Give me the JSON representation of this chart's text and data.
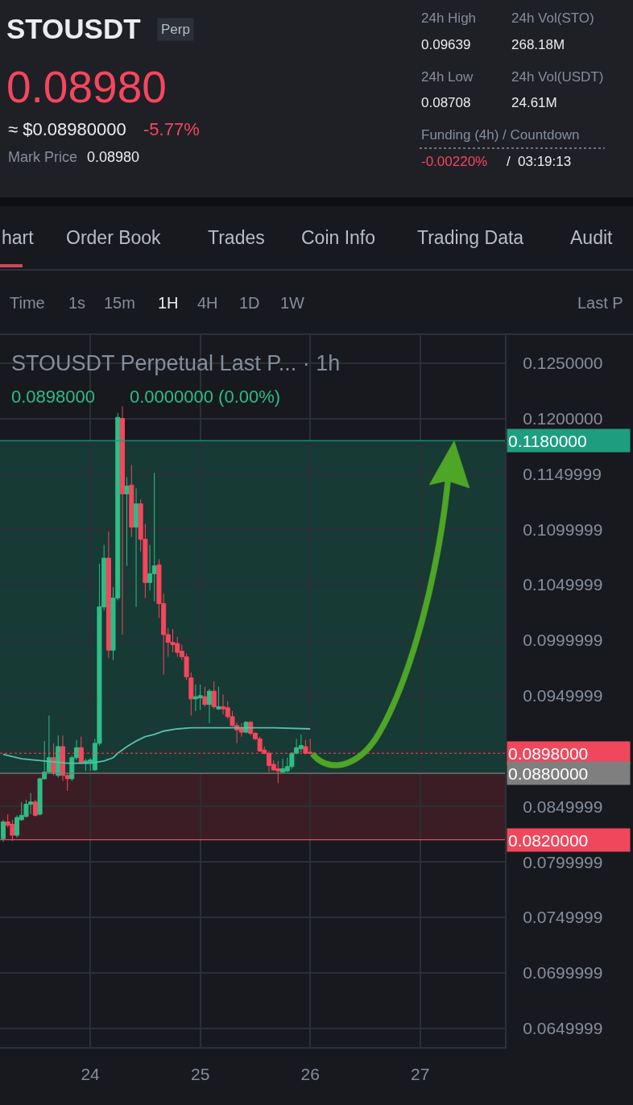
{
  "chart_data": {
    "type": "candlestick",
    "title": "STOUSDT",
    "subtitle": "STOUSDT Perpetual Last P... · 1h",
    "annotations": [
      "Perp",
      "0.08980",
      "≈ $0.08980000",
      "-5.77%",
      "Mark Price",
      "0.08980",
      "24h High",
      "0.09639",
      "24h Vol(STO)",
      "268.18M",
      "24h Low",
      "0.08708",
      "24h Vol(USDT)",
      "24.61M",
      "Funding (4h) / Countdown",
      "-0.00220%",
      "/",
      "03:19:13",
      "hart",
      "Order Book",
      "Trades",
      "Coin Info",
      "Trading Data",
      "Audit",
      "Time",
      "1s",
      "15m",
      "1H",
      "4H",
      "1D",
      "1W",
      "Last P",
      "0.0898000",
      "0.0000000 (0.00%)"
    ],
    "x": [
      23.208,
      23.25,
      23.292,
      23.333,
      23.375,
      23.417,
      23.458,
      23.5,
      23.542,
      23.583,
      23.625,
      23.667,
      23.708,
      23.75,
      23.792,
      23.833,
      23.875,
      23.917,
      23.958,
      24,
      24.042,
      24.083,
      24.125,
      24.167,
      24.208,
      24.25,
      24.292,
      24.333,
      24.375,
      24.417,
      24.458,
      24.5,
      24.542,
      24.583,
      24.625,
      24.667,
      24.708,
      24.75,
      24.792,
      24.833,
      24.875,
      24.917,
      24.958,
      25,
      25.042,
      25.083,
      25.125,
      25.167,
      25.208,
      25.25,
      25.292,
      25.333,
      25.375,
      25.417,
      25.458,
      25.5,
      25.542,
      25.583,
      25.625,
      25.667,
      25.708,
      25.75,
      25.792,
      25.833,
      25.875,
      25.917,
      25.958,
      26
    ],
    "ohlc": [
      [
        0.0821,
        0.0838,
        0.0818,
        0.0836
      ],
      [
        0.0836,
        0.0843,
        0.0831,
        0.0833
      ],
      [
        0.0834,
        0.0838,
        0.0819,
        0.0824
      ],
      [
        0.0824,
        0.0842,
        0.0822,
        0.084
      ],
      [
        0.0838,
        0.0854,
        0.0837,
        0.0842
      ],
      [
        0.0841,
        0.0856,
        0.084,
        0.0852
      ],
      [
        0.0852,
        0.0862,
        0.0843,
        0.0854
      ],
      [
        0.0854,
        0.0856,
        0.0841,
        0.0842
      ],
      [
        0.0843,
        0.0876,
        0.0842,
        0.0875
      ],
      [
        0.0875,
        0.0909,
        0.0874,
        0.0881
      ],
      [
        0.0881,
        0.0932,
        0.088,
        0.0894
      ],
      [
        0.0894,
        0.0907,
        0.0878,
        0.088
      ],
      [
        0.0878,
        0.0914,
        0.0876,
        0.0904
      ],
      [
        0.0904,
        0.0914,
        0.0873,
        0.0878
      ],
      [
        0.0878,
        0.088,
        0.0864,
        0.0875
      ],
      [
        0.0875,
        0.0896,
        0.0873,
        0.0894
      ],
      [
        0.0894,
        0.091,
        0.0892,
        0.0903
      ],
      [
        0.0903,
        0.0913,
        0.0888,
        0.0889
      ],
      [
        0.0889,
        0.0893,
        0.0882,
        0.0891
      ],
      [
        0.089,
        0.0894,
        0.0882,
        0.0892
      ],
      [
        0.0883,
        0.0911,
        0.0882,
        0.0907
      ],
      [
        0.0907,
        0.1069,
        0.0905,
        0.103
      ],
      [
        0.103,
        0.1086,
        0.1027,
        0.1074
      ],
      [
        0.1074,
        0.1098,
        0.0984,
        0.0991
      ],
      [
        0.0991,
        0.1048,
        0.0982,
        0.1038
      ],
      [
        0.1038,
        0.1205,
        0.1036,
        0.1201
      ],
      [
        0.12,
        0.1211,
        0.1005,
        0.1132
      ],
      [
        0.1132,
        0.1147,
        0.1067,
        0.1139
      ],
      [
        0.114,
        0.1158,
        0.1093,
        0.1102
      ],
      [
        0.1102,
        0.1137,
        0.103,
        0.1123
      ],
      [
        0.1123,
        0.1127,
        0.108,
        0.1091
      ],
      [
        0.1091,
        0.1105,
        0.1038,
        0.1052
      ],
      [
        0.1052,
        0.1086,
        0.1045,
        0.106
      ],
      [
        0.106,
        0.1151,
        0.1035,
        0.1067
      ],
      [
        0.1068,
        0.1073,
        0.102,
        0.1033
      ],
      [
        0.1033,
        0.1042,
        0.0969,
        0.1005
      ],
      [
        0.1005,
        0.1011,
        0.0985,
        0.0998
      ],
      [
        0.0998,
        0.101,
        0.0989,
        0.0996
      ],
      [
        0.0997,
        0.1003,
        0.0985,
        0.0989
      ],
      [
        0.099,
        0.0996,
        0.0982,
        0.0985
      ],
      [
        0.0985,
        0.0988,
        0.0964,
        0.0967
      ],
      [
        0.0966,
        0.0971,
        0.0932,
        0.0947
      ],
      [
        0.0947,
        0.096,
        0.0936,
        0.0949
      ],
      [
        0.0948,
        0.096,
        0.0937,
        0.095
      ],
      [
        0.0949,
        0.0958,
        0.094,
        0.0942
      ],
      [
        0.0942,
        0.0956,
        0.0925,
        0.0954
      ],
      [
        0.0954,
        0.0963,
        0.0938,
        0.094
      ],
      [
        0.0938,
        0.0958,
        0.0937,
        0.094
      ],
      [
        0.094,
        0.0951,
        0.0933,
        0.0938
      ],
      [
        0.0939,
        0.0945,
        0.0929,
        0.0931
      ],
      [
        0.0931,
        0.0936,
        0.0922,
        0.0923
      ],
      [
        0.0923,
        0.0926,
        0.0907,
        0.0919
      ],
      [
        0.0921,
        0.0925,
        0.0913,
        0.0917
      ],
      [
        0.0917,
        0.0927,
        0.0916,
        0.0926
      ],
      [
        0.0926,
        0.0927,
        0.0914,
        0.0916
      ],
      [
        0.0916,
        0.0917,
        0.091,
        0.0911
      ],
      [
        0.0911,
        0.0913,
        0.0899,
        0.09
      ],
      [
        0.0901,
        0.0904,
        0.0897,
        0.0898
      ],
      [
        0.0898,
        0.09,
        0.0881,
        0.0887
      ],
      [
        0.0888,
        0.0892,
        0.0882,
        0.0883
      ],
      [
        0.0884,
        0.0891,
        0.0871,
        0.0882
      ],
      [
        0.0881,
        0.0893,
        0.0881,
        0.0884
      ],
      [
        0.0882,
        0.0894,
        0.0881,
        0.0886
      ],
      [
        0.0886,
        0.0899,
        0.0884,
        0.0898
      ],
      [
        0.0898,
        0.0911,
        0.0897,
        0.0903
      ],
      [
        0.0902,
        0.0915,
        0.0899,
        0.0905
      ],
      [
        0.0904,
        0.091,
        0.0897,
        0.0898
      ],
      [
        0.0899,
        0.0911,
        0.0897,
        0.0898
      ]
    ],
    "colors": [
      "#2ebd85",
      "#f6465d",
      "#f6465d",
      "#2ebd85",
      "#2ebd85",
      "#2ebd85",
      "#2ebd85",
      "#f6465d",
      "#2ebd85",
      "#2ebd85",
      "#2ebd85",
      "#f6465d",
      "#2ebd85",
      "#f6465d",
      "#f6465d",
      "#2ebd85",
      "#2ebd85",
      "#f6465d",
      "#2ebd85",
      "#2ebd85",
      "#2ebd85",
      "#2ebd85",
      "#2ebd85",
      "#f6465d",
      "#2ebd85",
      "#2ebd85",
      "#f6465d",
      "#2ebd85",
      "#f6465d",
      "#2ebd85",
      "#f6465d",
      "#f6465d",
      "#2ebd85",
      "#2ebd85",
      "#f6465d",
      "#f6465d",
      "#f6465d",
      "#f6465d",
      "#f6465d",
      "#f6465d",
      "#f6465d",
      "#f6465d",
      "#2ebd85",
      "#2ebd85",
      "#f6465d",
      "#2ebd85",
      "#f6465d",
      "#2ebd85",
      "#f6465d",
      "#f6465d",
      "#f6465d",
      "#f6465d",
      "#f6465d",
      "#2ebd85",
      "#f6465d",
      "#f6465d",
      "#f6465d",
      "#f6465d",
      "#f6465d",
      "#f6465d",
      "#f6465d",
      "#2ebd85",
      "#2ebd85",
      "#2ebd85",
      "#2ebd85",
      "#2ebd85",
      "#f6465d",
      "#f6465d"
    ],
    "series": [
      {
        "type": "line",
        "color": "#58c0a6",
        "x": [
          23.208,
          23.375,
          23.583,
          23.792,
          24,
          24.125,
          24.208,
          24.25,
          24.333,
          24.417,
          24.5,
          24.583,
          24.667,
          24.792,
          24.917,
          25.125,
          25.375,
          25.667,
          26
        ],
        "values": [
          0.0897,
          0.0893,
          0.0891,
          0.0889,
          0.0889,
          0.0891,
          0.0894,
          0.0898,
          0.0904,
          0.0909,
          0.0913,
          0.0915,
          0.0918,
          0.092,
          0.0921,
          0.0921,
          0.0921,
          0.0921,
          0.092
        ]
      }
    ],
    "xlim": [
      23.179,
      27.771
    ],
    "xticks": [
      24,
      25,
      26,
      27
    ],
    "ylim": [
      0.0633,
      0.1276
    ],
    "yticks": [
      {
        "value": 0.125,
        "label": "0.1250000"
      },
      {
        "value": 0.12,
        "label": "0.1200000"
      },
      0.1149999,
      0.1099999,
      0.1049999,
      0.0999999,
      0.0949999,
      {
        "value": 0.0899999,
        "label": null
      },
      0.0849999,
      0.0799999,
      0.0749999,
      0.0699999,
      0.0649999
    ],
    "grid": true,
    "bands": [
      {
        "axis": "y",
        "from": 0.088,
        "to": 0.118,
        "color": "#173a34"
      },
      {
        "axis": "y",
        "from": 0.082,
        "to": 0.088,
        "color": "#3b1e25"
      }
    ],
    "ref_lines": [
      {
        "axis": "y",
        "value": 0.118,
        "label": "0.1180000",
        "color": "#1e9e7e"
      },
      {
        "axis": "y",
        "value": 0.0898,
        "label": "0.0898000",
        "color": "#f0475d",
        "line_style": "dotted"
      },
      {
        "axis": "y",
        "value": 0.088,
        "label": "0.0880000",
        "color": "#7f7f7f"
      },
      {
        "axis": "y",
        "value": 0.082,
        "label": "0.0820000",
        "color": "#f0475d"
      }
    ]
  }
}
